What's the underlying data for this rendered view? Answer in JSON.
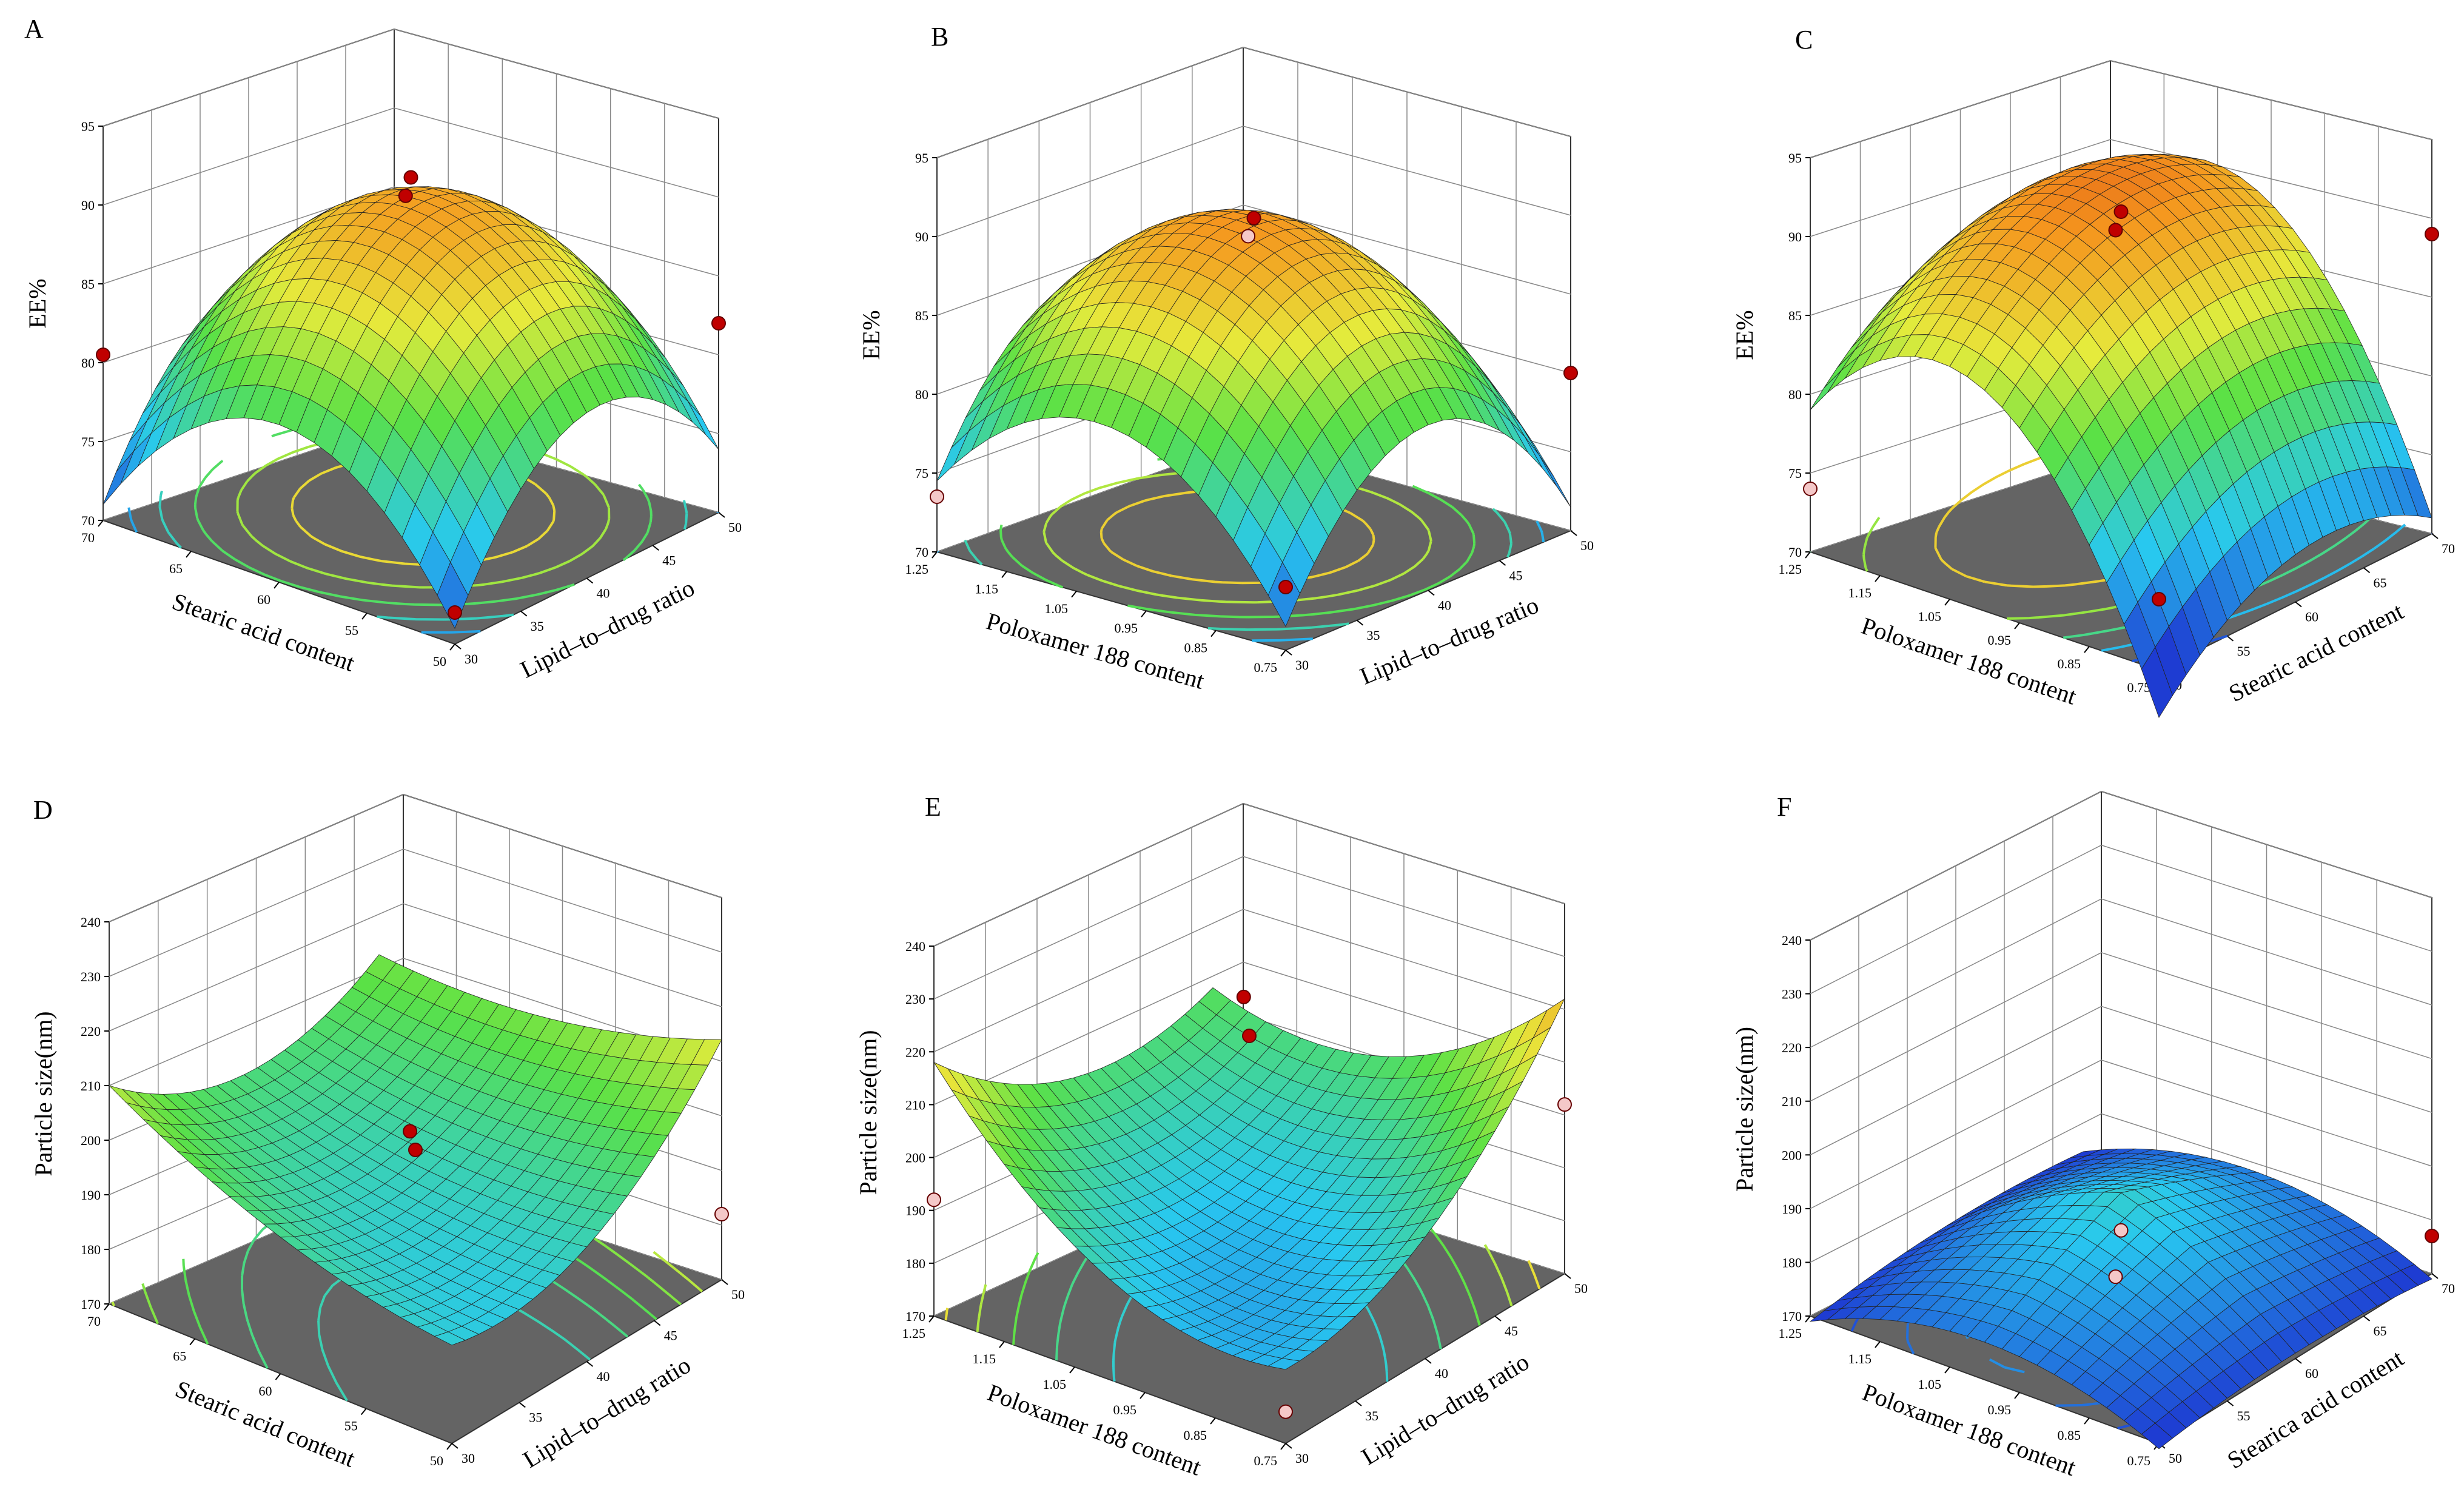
{
  "figure": {
    "description": "Response surface plots (3D surfaces with base contours)"
  },
  "chart_data": [
    {
      "type": "surface",
      "panel": "A",
      "zlabel": "EE%",
      "zlim": [
        70,
        95
      ],
      "zticks": [
        "70",
        "75",
        "80",
        "85",
        "90",
        "95"
      ],
      "xlabel": "Stearic acid content",
      "xticks": [
        "70",
        "65",
        "60",
        "55",
        "50"
      ],
      "ylabel": "Lipid–to–drug ratio",
      "yticks": [
        "30",
        "35",
        "40",
        "45",
        "50"
      ],
      "surface_model": {
        "center": 89.5,
        "corner_low": 72,
        "corner_high": 82
      },
      "design_points": [
        {
          "z": 91.5
        },
        {
          "z": 90.5
        },
        {
          "z": 82
        },
        {
          "z": 80.5
        },
        {
          "z": 72
        }
      ]
    },
    {
      "type": "surface",
      "panel": "B",
      "zlabel": "EE%",
      "zlim": [
        70,
        95
      ],
      "zticks": [
        "70",
        "75",
        "80",
        "85",
        "90",
        "95"
      ],
      "xlabel": "Poloxamer 188 content",
      "xticks": [
        "1.25",
        "1.15",
        "1.05",
        "0.95",
        "0.85",
        "0.75"
      ],
      "ylabel": "Lipid–to–drug ratio",
      "yticks": [
        "30",
        "35",
        "40",
        "45",
        "50"
      ],
      "surface_model": {
        "center": 90,
        "corner_low": 73,
        "corner_high": 80
      },
      "design_points": [
        {
          "z": 90.5
        },
        {
          "z": 89.5
        },
        {
          "z": 80
        },
        {
          "z": 73.5
        },
        {
          "z": 74
        }
      ]
    },
    {
      "type": "surface",
      "panel": "C",
      "zlabel": "EE%",
      "zlim": [
        70,
        95
      ],
      "zticks": [
        "70",
        "75",
        "80",
        "85",
        "90",
        "95"
      ],
      "xlabel": "Poloxamer 188 content",
      "xticks": [
        "1.25",
        "1.15",
        "1.05",
        "0.95",
        "0.85",
        "0.75"
      ],
      "ylabel": "Stearic acid content",
      "yticks": [
        "50",
        "55",
        "60",
        "65",
        "70"
      ],
      "surface_model": {
        "center": 90,
        "corner_low": 74,
        "corner_high": 89
      },
      "design_points": [
        {
          "z": 91
        },
        {
          "z": 90
        },
        {
          "z": 89
        },
        {
          "z": 74
        },
        {
          "z": 74.5
        }
      ]
    },
    {
      "type": "surface",
      "panel": "D",
      "zlabel": "Particle size(nm)",
      "zlim": [
        170,
        240
      ],
      "zticks": [
        "170",
        "180",
        "190",
        "200",
        "210",
        "220",
        "230",
        "240"
      ],
      "xlabel": "Stearic acid content",
      "xticks": [
        "70",
        "65",
        "60",
        "55",
        "50"
      ],
      "ylabel": "Lipid–to–drug ratio",
      "yticks": [
        "30",
        "35",
        "40",
        "45",
        "50"
      ],
      "surface_model": {
        "center": 190,
        "corner_low": 186,
        "corner_high": 214
      },
      "design_points": [
        {
          "z": 196
        },
        {
          "z": 200
        },
        {
          "z": 182
        }
      ]
    },
    {
      "type": "surface",
      "panel": "E",
      "zlabel": "Particle size(nm)",
      "zlim": [
        170,
        240
      ],
      "zticks": [
        "170",
        "180",
        "190",
        "200",
        "210",
        "220",
        "230",
        "240"
      ],
      "xlabel": "Poloxamer 188 content",
      "xticks": [
        "1.25",
        "1.15",
        "1.05",
        "0.95",
        "0.85",
        "0.75"
      ],
      "ylabel": "Lipid–to–drug ratio",
      "yticks": [
        "30",
        "35",
        "40",
        "45",
        "50"
      ],
      "surface_model": {
        "center": 185,
        "corner_low": 175,
        "corner_high": 226
      },
      "design_points": [
        {
          "z": 219
        },
        {
          "z": 227
        },
        {
          "z": 202
        },
        {
          "z": 192
        },
        {
          "z": 176
        }
      ]
    },
    {
      "type": "surface",
      "panel": "F",
      "zlabel": "Particle size(nm)",
      "zlim": [
        170,
        240
      ],
      "zticks": [
        "170",
        "180",
        "190",
        "200",
        "210",
        "220",
        "230",
        "240"
      ],
      "xlabel": "Poloxamer 188 content",
      "xticks": [
        "1.25",
        "1.15",
        "1.05",
        "0.95",
        "0.85",
        "0.75"
      ],
      "ylabel": "Stearica acid content",
      "yticks": [
        "50",
        "55",
        "60",
        "65",
        "70"
      ],
      "surface_model": {
        "center": 182,
        "corner_low": 174,
        "corner_high": 203
      },
      "design_points": [
        {
          "z": 182
        },
        {
          "z": 174
        },
        {
          "z": 177
        }
      ]
    }
  ]
}
